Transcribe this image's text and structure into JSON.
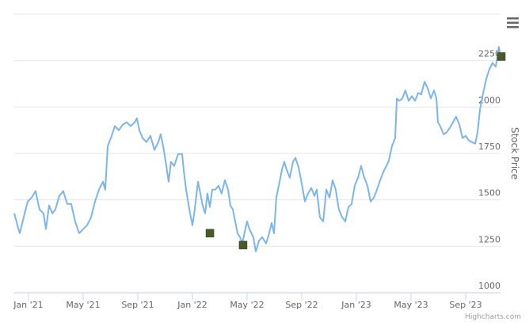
{
  "chart_data": {
    "type": "line",
    "y_axis_title": "Stock Price",
    "credits": "Highcharts.com",
    "xlim": [
      -1.04,
      34.55
    ],
    "ylim": [
      1000,
      2500
    ],
    "xticks": [
      {
        "value": 0,
        "label": "Jan '21"
      },
      {
        "value": 4,
        "label": "May '21"
      },
      {
        "value": 8,
        "label": "Sep '21"
      },
      {
        "value": 12,
        "label": "Jan '22"
      },
      {
        "value": 16,
        "label": "May '22"
      },
      {
        "value": 20,
        "label": "Sep '22"
      },
      {
        "value": 24,
        "label": "Jan '23"
      },
      {
        "value": 28,
        "label": "May '23"
      },
      {
        "value": 32,
        "label": "Sep '23"
      }
    ],
    "yticks": [
      1000,
      1250,
      1500,
      1750,
      2000,
      2250
    ],
    "grid": true,
    "x": [
      -1.04,
      -0.81,
      -0.64,
      -0.35,
      -0.06,
      0.23,
      0.52,
      0.81,
      1.1,
      1.28,
      1.51,
      1.74,
      1.97,
      2.26,
      2.55,
      2.84,
      3.13,
      3.42,
      3.71,
      4.0,
      4.29,
      4.58,
      4.87,
      5.16,
      5.45,
      5.62,
      5.8,
      6.03,
      6.32,
      6.61,
      6.9,
      7.19,
      7.48,
      7.77,
      7.94,
      8.12,
      8.35,
      8.64,
      8.93,
      9.22,
      9.51,
      9.68,
      9.91,
      10.09,
      10.26,
      10.43,
      10.67,
      10.96,
      11.25,
      11.36,
      11.54,
      11.83,
      12.0,
      12.17,
      12.41,
      12.58,
      12.75,
      12.93,
      13.1,
      13.28,
      13.45,
      13.68,
      13.91,
      14.14,
      14.38,
      14.61,
      14.78,
      14.96,
      15.13,
      15.3,
      15.48,
      15.65,
      15.77,
      16.0,
      16.17,
      16.46,
      16.64,
      16.87,
      17.1,
      17.39,
      17.62,
      17.8,
      17.97,
      18.14,
      18.32,
      18.55,
      18.72,
      18.9,
      19.13,
      19.36,
      19.54,
      19.77,
      20.0,
      20.23,
      20.46,
      20.7,
      20.93,
      21.1,
      21.33,
      21.57,
      21.8,
      22.03,
      22.26,
      22.49,
      22.72,
      22.96,
      23.19,
      23.42,
      23.65,
      23.88,
      24.12,
      24.35,
      24.58,
      24.81,
      25.04,
      25.28,
      25.51,
      25.74,
      25.97,
      26.2,
      26.38,
      26.61,
      26.84,
      26.96,
      27.13,
      27.36,
      27.59,
      27.83,
      28.06,
      28.29,
      28.52,
      28.75,
      28.99,
      29.22,
      29.45,
      29.68,
      29.86,
      29.97,
      30.14,
      30.38,
      30.61,
      30.84,
      31.07,
      31.3,
      31.54,
      31.77,
      32.0,
      32.23,
      32.46,
      32.7,
      32.87,
      33.04,
      33.28,
      33.51,
      33.74,
      33.97,
      34.2,
      34.43,
      34.55
    ],
    "series": [
      {
        "color": "#7cb5ec",
        "values": [
          1427,
          1363,
          1320,
          1406,
          1491,
          1512,
          1547,
          1448,
          1427,
          1342,
          1470,
          1427,
          1448,
          1521,
          1547,
          1478,
          1478,
          1384,
          1320,
          1342,
          1363,
          1406,
          1491,
          1555,
          1598,
          1555,
          1790,
          1833,
          1897,
          1875,
          1905,
          1918,
          1897,
          1918,
          1939,
          1875,
          1833,
          1811,
          1845,
          1769,
          1811,
          1854,
          1769,
          1683,
          1598,
          1705,
          1683,
          1747,
          1747,
          1662,
          1555,
          1427,
          1363,
          1448,
          1598,
          1534,
          1470,
          1427,
          1534,
          1461,
          1555,
          1555,
          1576,
          1534,
          1606,
          1555,
          1470,
          1448,
          1384,
          1320,
          1299,
          1265,
          1307,
          1384,
          1342,
          1299,
          1222,
          1278,
          1299,
          1265,
          1320,
          1376,
          1320,
          1512,
          1576,
          1662,
          1705,
          1662,
          1619,
          1705,
          1726,
          1675,
          1589,
          1491,
          1534,
          1564,
          1521,
          1555,
          1406,
          1384,
          1555,
          1512,
          1606,
          1555,
          1448,
          1406,
          1384,
          1461,
          1478,
          1576,
          1619,
          1683,
          1619,
          1576,
          1491,
          1512,
          1555,
          1606,
          1649,
          1683,
          1713,
          1790,
          1833,
          2046,
          2033,
          2046,
          2089,
          2033,
          2059,
          2033,
          2076,
          2068,
          2136,
          2102,
          2046,
          2089,
          2046,
          1918,
          1897,
          1854,
          1863,
          1888,
          1918,
          1948,
          1905,
          1833,
          1845,
          1820,
          1811,
          1803,
          1863,
          1982,
          2076,
          2153,
          2204,
          2238,
          2217,
          2324,
          2281
        ]
      },
      {
        "color": "#4b5a23",
        "marker": "square",
        "x": [
          13.28,
          15.71,
          34.61
        ],
        "values": [
          1320,
          1256,
          2272
        ]
      }
    ]
  }
}
